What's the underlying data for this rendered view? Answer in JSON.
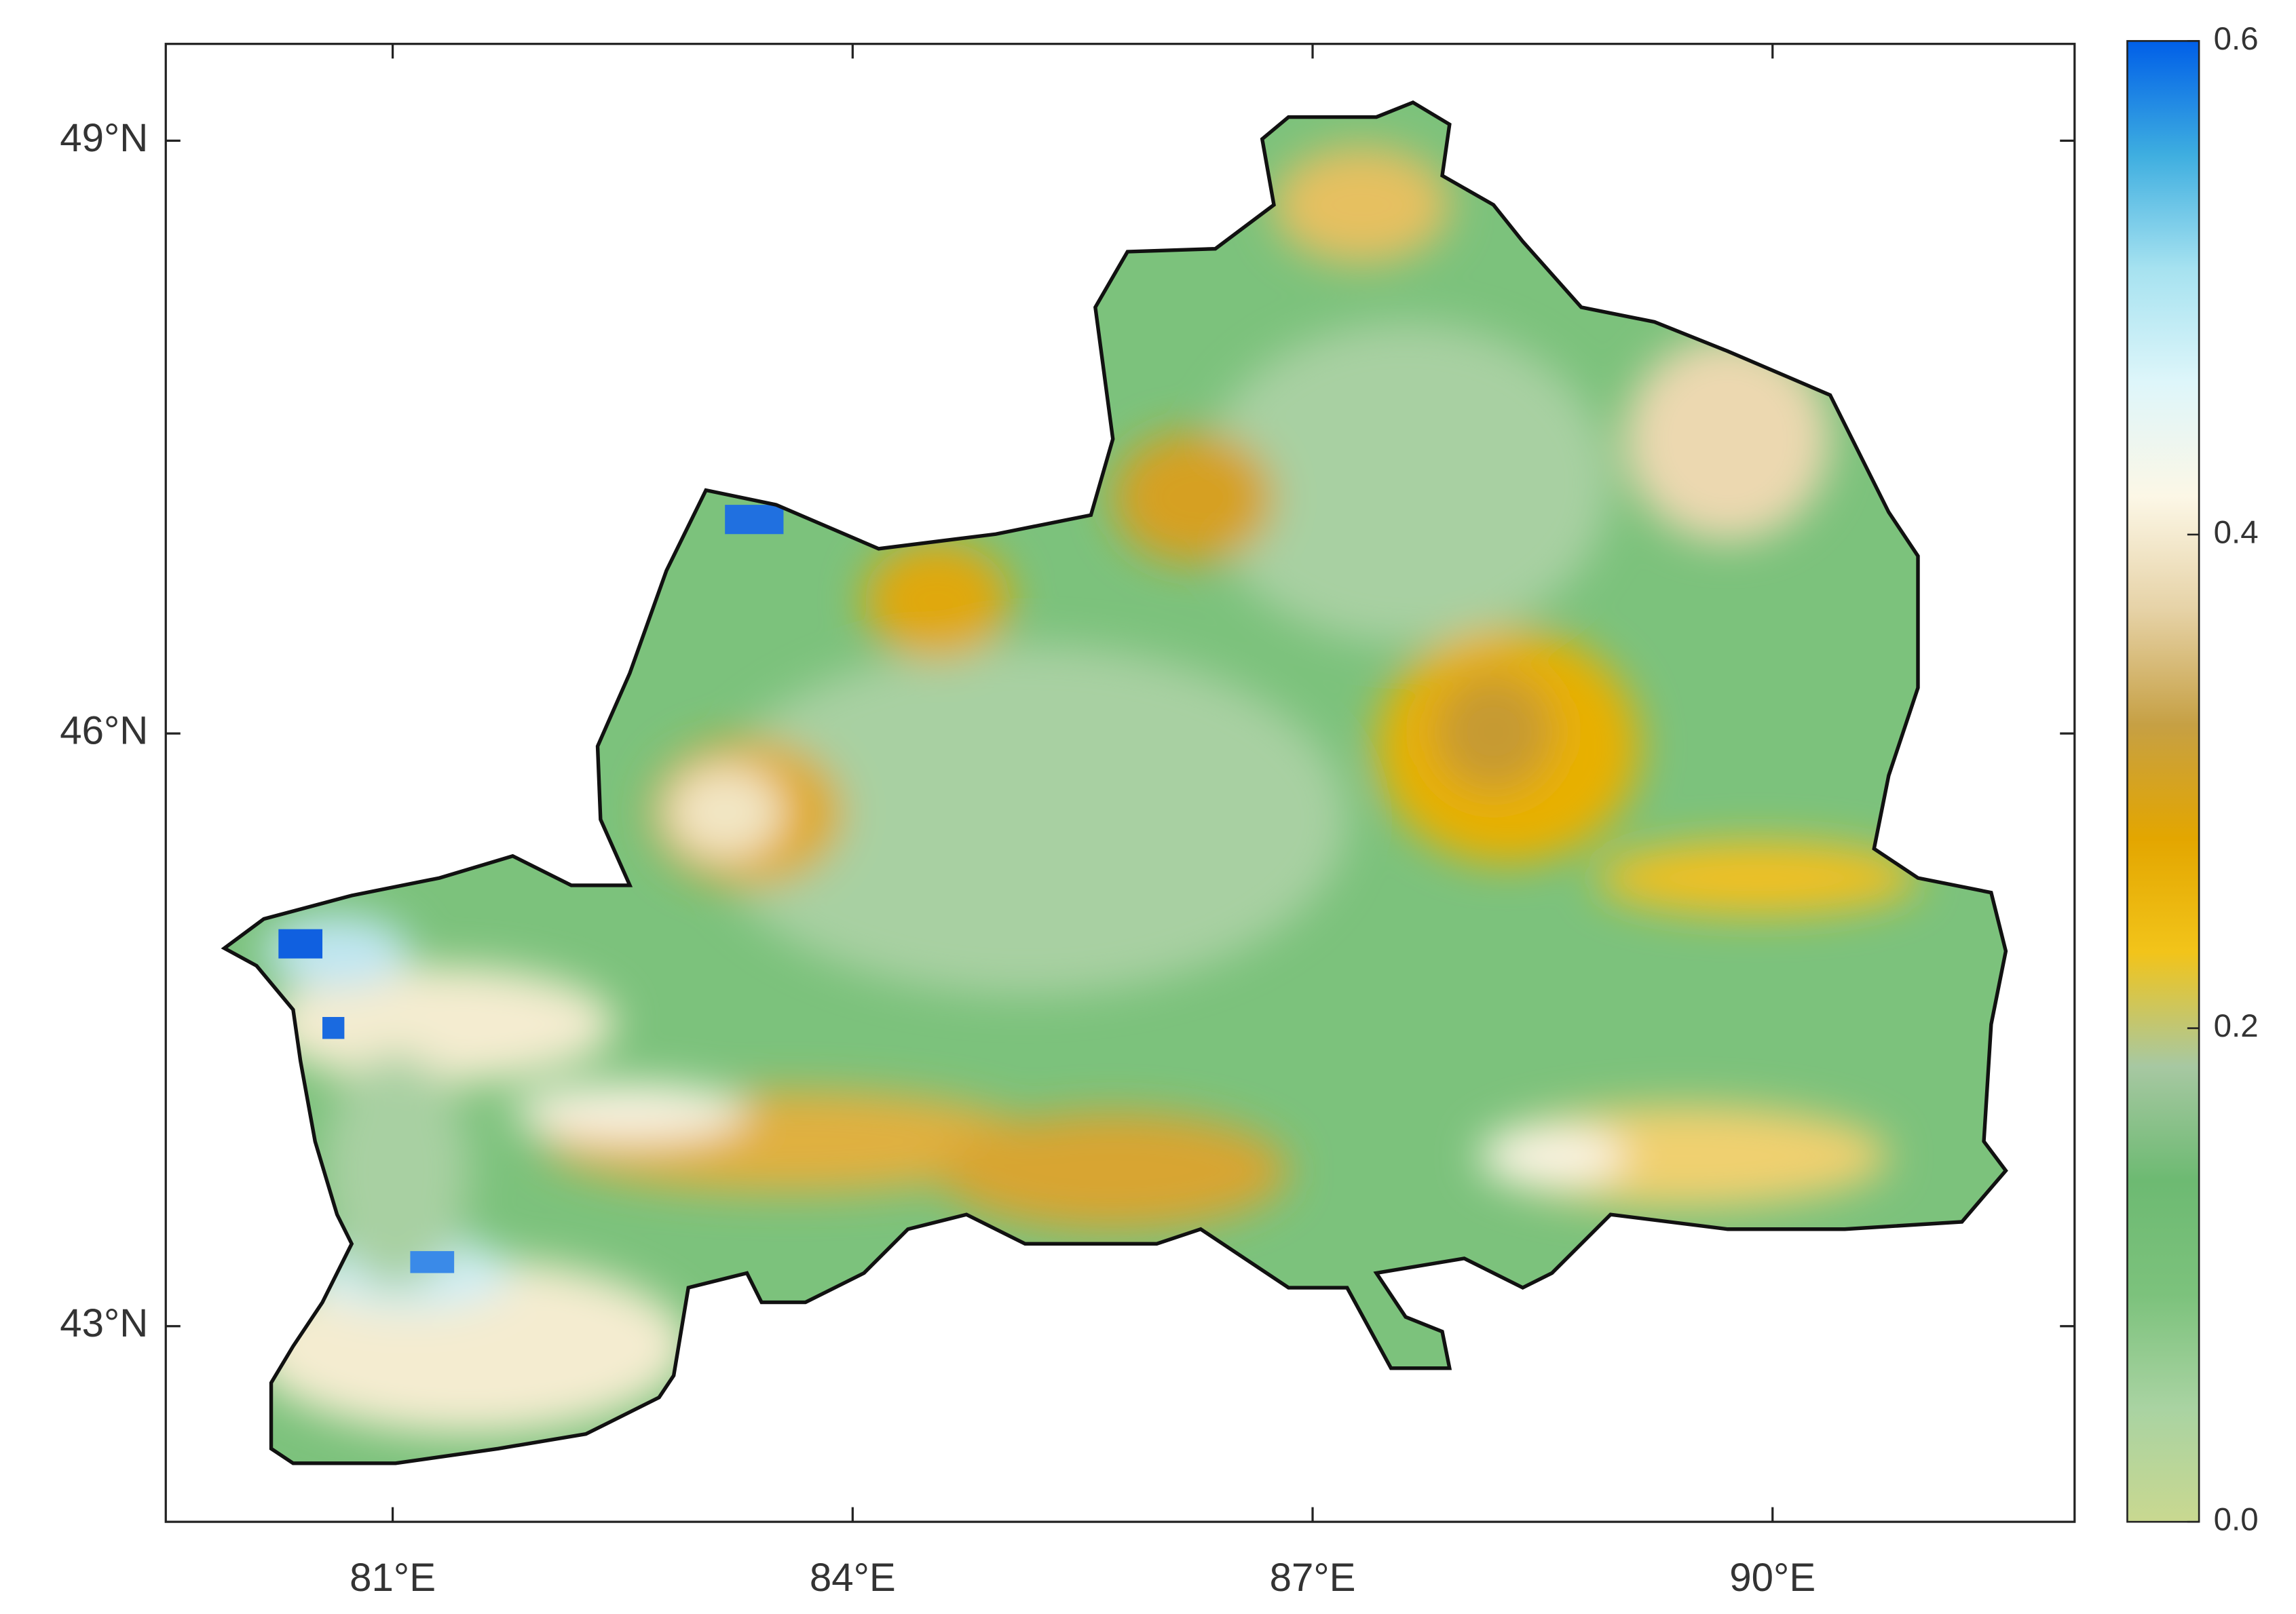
{
  "map": {
    "xlim": [
      79.52,
      91.97
    ],
    "ylim": [
      42.01,
      49.49
    ],
    "xticks": [
      {
        "value": 81,
        "label": "81°E"
      },
      {
        "value": 84,
        "label": "84°E"
      },
      {
        "value": 87,
        "label": "87°E"
      },
      {
        "value": 90,
        "label": "90°E"
      }
    ],
    "yticks": [
      {
        "value": 43,
        "label": "43°N"
      },
      {
        "value": 46,
        "label": "46°N"
      },
      {
        "value": 49,
        "label": "49°N"
      }
    ],
    "colorbar": {
      "lim": [
        0,
        0.6
      ],
      "ticks": [
        {
          "value": 0,
          "label": "0.0"
        },
        0.2,
        0.4,
        0.6
      ],
      "colormap": [
        "#c9d890",
        "#a9d3a2",
        "#7cc27c",
        "#6dba72",
        "#a7c8a2",
        "#f2c41a",
        "#e3a600",
        "#c6a044",
        "#e6d2a6",
        "#fcf7e6",
        "#def6fa",
        "#a6e2f0",
        "#3eaee0",
        "#005fe8"
      ]
    }
  }
}
